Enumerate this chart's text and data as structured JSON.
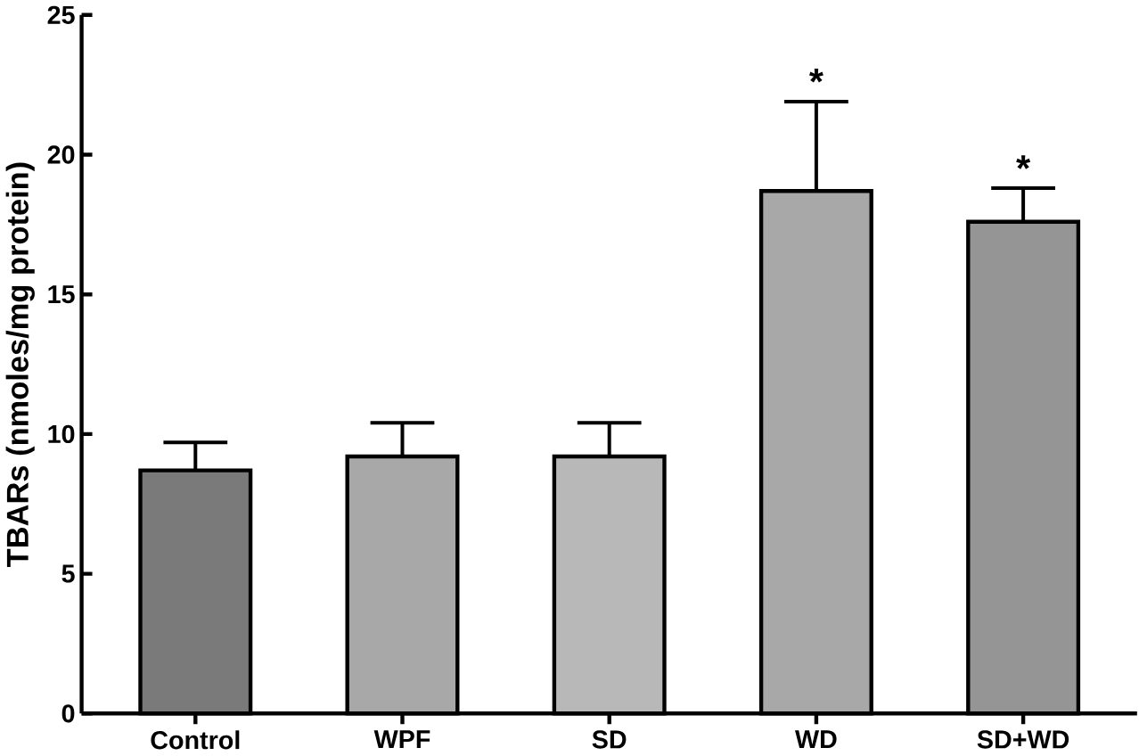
{
  "chart_data": {
    "type": "bar",
    "ylabel": "TBARs (nmoles/mg protein)",
    "categories": [
      "Control",
      "WPF",
      "SD",
      "WD",
      "SD+WD"
    ],
    "values": [
      8.7,
      9.2,
      9.2,
      18.7,
      17.6
    ],
    "errors": [
      [
        8.7,
        9.7
      ],
      [
        9.2,
        10.4
      ],
      [
        9.2,
        10.4
      ],
      [
        18.7,
        21.9
      ],
      [
        17.6,
        18.8
      ]
    ],
    "colors": [
      "#7a7a7a",
      "#a8a8a8",
      "#b8b8b8",
      "#a8a8a8",
      "#959595"
    ],
    "ylim": [
      0,
      25
    ],
    "yticks": [
      0,
      5,
      10,
      15,
      20,
      25
    ],
    "annotations": [
      "*",
      "*"
    ]
  }
}
